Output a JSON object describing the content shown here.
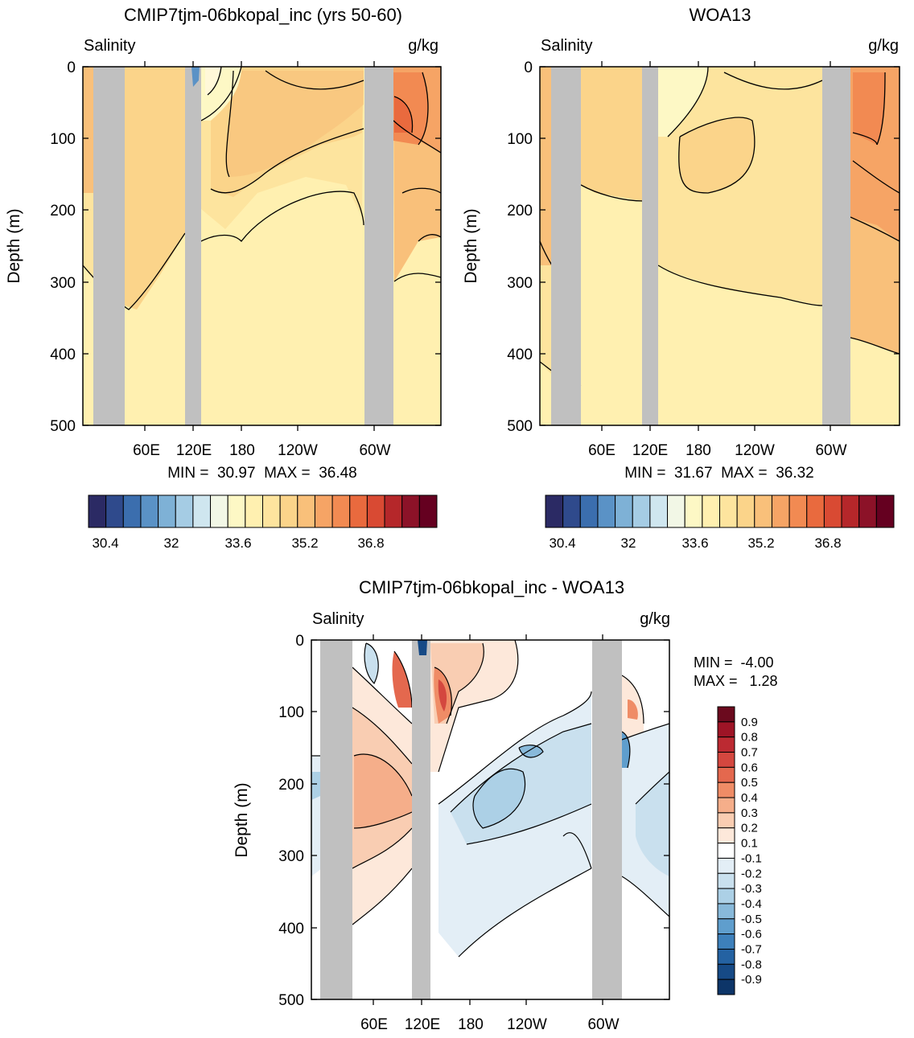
{
  "chart_data": [
    {
      "type": "heatmap",
      "title": "CMIP7tjm-06bkopal_inc (yrs 50-60)",
      "left_label": "Salinity",
      "right_label": "g/kg",
      "ylabel": "Depth (m)",
      "y_ticks": [
        0,
        100,
        200,
        300,
        400,
        500
      ],
      "ylim": [
        0,
        500
      ],
      "x_ticks": [
        "60E",
        "120E",
        "180",
        "120W",
        "60W"
      ],
      "stats": "MIN =  30.97  MAX =  36.48",
      "colorbar": {
        "orientation": "horizontal",
        "labels": [
          "30.4",
          "32",
          "33.6",
          "35.2",
          "36.8"
        ],
        "colors": [
          "#2b2a64",
          "#2f4a8c",
          "#3b6eae",
          "#5a92c6",
          "#7eb1d6",
          "#a5cce4",
          "#cfe6ef",
          "#f2f7e6",
          "#fdf8c5",
          "#fff0b0",
          "#fde49e",
          "#fbd48a",
          "#f9c07a",
          "#f6a465",
          "#f28a52",
          "#e96a3e",
          "#d94a33",
          "#b5272a",
          "#8c1228",
          "#650020"
        ]
      },
      "land_bands": [
        "20E-40E",
        "105E-117E",
        "75W-55W"
      ]
    },
    {
      "type": "heatmap",
      "title": "WOA13",
      "left_label": "Salinity",
      "right_label": "g/kg",
      "ylabel": "Depth (m)",
      "y_ticks": [
        0,
        100,
        200,
        300,
        400,
        500
      ],
      "ylim": [
        0,
        500
      ],
      "x_ticks": [
        "60E",
        "120E",
        "180",
        "120W",
        "60W"
      ],
      "stats": "MIN =  31.67  MAX =  36.32",
      "colorbar": {
        "orientation": "horizontal",
        "labels": [
          "30.4",
          "32",
          "33.6",
          "35.2",
          "36.8"
        ],
        "colors": [
          "#2b2a64",
          "#2f4a8c",
          "#3b6eae",
          "#5a92c6",
          "#7eb1d6",
          "#a5cce4",
          "#cfe6ef",
          "#f2f7e6",
          "#fdf8c5",
          "#fff0b0",
          "#fde49e",
          "#fbd48a",
          "#f9c07a",
          "#f6a465",
          "#f28a52",
          "#e96a3e",
          "#d94a33",
          "#b5272a",
          "#8c1228",
          "#650020"
        ]
      },
      "land_bands": [
        "20E-40E",
        "105E-117E",
        "75W-55W"
      ]
    },
    {
      "type": "heatmap",
      "title": "CMIP7tjm-06bkopal_inc - WOA13",
      "left_label": "Salinity",
      "right_label": "g/kg",
      "ylabel": "Depth (m)",
      "y_ticks": [
        0,
        100,
        200,
        300,
        400,
        500
      ],
      "ylim": [
        0,
        500
      ],
      "x_ticks": [
        "60E",
        "120E",
        "180",
        "120W",
        "60W"
      ],
      "stats_min": "MIN =  -4.00",
      "stats_max": "MAX =   1.28",
      "colorbar": {
        "orientation": "vertical",
        "labels": [
          "0.9",
          "0.8",
          "0.7",
          "0.6",
          "0.5",
          "0.4",
          "0.3",
          "0.2",
          "0.1",
          "-0.1",
          "-0.2",
          "-0.3",
          "-0.4",
          "-0.5",
          "-0.6",
          "-0.7",
          "-0.8",
          "-0.9"
        ],
        "colors": [
          "#6b0a1e",
          "#9e1426",
          "#bc2a32",
          "#d4473f",
          "#e4684e",
          "#ef8c66",
          "#f5ae8a",
          "#f9cdb2",
          "#fde8da",
          "#ffffff",
          "#e3eef6",
          "#c9e0ee",
          "#acd0e6",
          "#88b9da",
          "#5f9ecd",
          "#3d80bb",
          "#2462a2",
          "#164a86",
          "#0d3568"
        ]
      },
      "land_bands": [
        "20E-40E",
        "105E-117E",
        "75W-55W"
      ]
    }
  ]
}
